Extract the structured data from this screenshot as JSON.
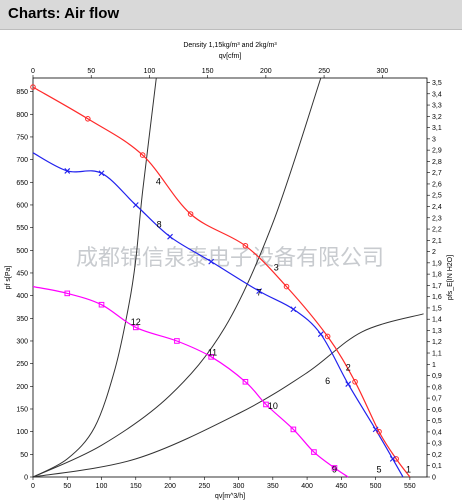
{
  "header": {
    "title": "Charts: Air flow"
  },
  "watermark": "成都锦信泉泰电子设备有限公司",
  "chart_data": {
    "type": "line",
    "title": "Density 1,15kg/m³ and 2kg/m³",
    "x_bottom": {
      "label": "qv[m^3/h]",
      "lim": [
        0,
        575
      ],
      "ticks": [
        0,
        50,
        100,
        150,
        200,
        250,
        300,
        350,
        400,
        450,
        500,
        550
      ]
    },
    "x_top": {
      "label": "qv[cfm]",
      "lim": [
        0,
        338.4
      ],
      "ticks": [
        0,
        50,
        100,
        150,
        200,
        250,
        300
      ]
    },
    "y_left": {
      "label": "pf s[Pa]",
      "lim": [
        0,
        880
      ],
      "ticks": [
        0,
        50,
        100,
        150,
        200,
        250,
        300,
        350,
        400,
        450,
        500,
        550,
        600,
        650,
        700,
        750,
        800,
        850
      ]
    },
    "y_right": {
      "label": "pfs_E[IN H2O]",
      "lim": [
        0,
        3.54
      ],
      "ticks": [
        "0",
        "0,1",
        "0,2",
        "0,3",
        "0,4",
        "0,5",
        "0,6",
        "0,7",
        "0,8",
        "0,9",
        "1",
        "1,1",
        "1,2",
        "1,3",
        "1,4",
        "1,5",
        "1,6",
        "1,7",
        "1,8",
        "1,9",
        "2",
        "2,1",
        "2,2",
        "2,3",
        "2,4",
        "2,5",
        "2,6",
        "2,7",
        "2,8",
        "2,9",
        "3",
        "3,1",
        "3,2",
        "3,3",
        "3,4",
        "3,5"
      ]
    },
    "grid": false,
    "series": [
      {
        "color": "#ff2a2a",
        "marker": "circle",
        "points": [
          [
            0,
            860
          ],
          [
            80,
            790
          ],
          [
            160,
            710
          ],
          [
            230,
            580
          ],
          [
            310,
            510
          ],
          [
            370,
            420
          ],
          [
            430,
            310
          ],
          [
            470,
            210
          ],
          [
            505,
            100
          ],
          [
            530,
            40
          ],
          [
            550,
            0
          ]
        ],
        "marker_points": [
          [
            0,
            860
          ],
          [
            80,
            790
          ],
          [
            160,
            710
          ],
          [
            230,
            580
          ],
          [
            310,
            510
          ],
          [
            370,
            420
          ],
          [
            430,
            310
          ],
          [
            470,
            210
          ],
          [
            505,
            100
          ],
          [
            530,
            40
          ]
        ]
      },
      {
        "color": "#2222ee",
        "marker": "cross",
        "points": [
          [
            0,
            715
          ],
          [
            50,
            675
          ],
          [
            100,
            670
          ],
          [
            150,
            600
          ],
          [
            200,
            530
          ],
          [
            260,
            475
          ],
          [
            330,
            410
          ],
          [
            380,
            370
          ],
          [
            420,
            315
          ],
          [
            460,
            205
          ],
          [
            500,
            105
          ],
          [
            525,
            40
          ],
          [
            540,
            0
          ]
        ],
        "marker_points": [
          [
            50,
            675
          ],
          [
            100,
            670
          ],
          [
            150,
            600
          ],
          [
            200,
            530
          ],
          [
            260,
            475
          ],
          [
            330,
            410
          ],
          [
            380,
            370
          ],
          [
            420,
            315
          ],
          [
            460,
            205
          ],
          [
            500,
            105
          ],
          [
            525,
            40
          ]
        ]
      },
      {
        "color": "#ff00ff",
        "marker": "square",
        "points": [
          [
            0,
            420
          ],
          [
            50,
            405
          ],
          [
            100,
            380
          ],
          [
            150,
            330
          ],
          [
            210,
            300
          ],
          [
            260,
            265
          ],
          [
            310,
            210
          ],
          [
            340,
            160
          ],
          [
            380,
            105
          ],
          [
            410,
            55
          ],
          [
            440,
            20
          ],
          [
            460,
            0
          ]
        ],
        "marker_points": [
          [
            50,
            405
          ],
          [
            100,
            380
          ],
          [
            150,
            330
          ],
          [
            210,
            300
          ],
          [
            260,
            265
          ],
          [
            310,
            210
          ],
          [
            340,
            160
          ],
          [
            380,
            105
          ],
          [
            410,
            55
          ],
          [
            440,
            20
          ]
        ]
      }
    ],
    "system_curves": [
      {
        "points": [
          [
            0,
            0
          ],
          [
            50,
            40
          ],
          [
            90,
            110
          ],
          [
            120,
            240
          ],
          [
            140,
            380
          ],
          [
            150,
            480
          ],
          [
            160,
            630
          ],
          [
            180,
            880
          ]
        ]
      },
      {
        "points": [
          [
            0,
            0
          ],
          [
            100,
            70
          ],
          [
            200,
            180
          ],
          [
            280,
            330
          ],
          [
            350,
            560
          ],
          [
            420,
            880
          ]
        ]
      },
      {
        "points": [
          [
            0,
            0
          ],
          [
            150,
            40
          ],
          [
            300,
            140
          ],
          [
            400,
            230
          ],
          [
            480,
            320
          ],
          [
            570,
            360
          ]
        ]
      }
    ],
    "point_labels": [
      {
        "text": "4",
        "x": 183,
        "y": 645
      },
      {
        "text": "8",
        "x": 184,
        "y": 550
      },
      {
        "text": "3",
        "x": 355,
        "y": 455
      },
      {
        "text": "7",
        "x": 330,
        "y": 400
      },
      {
        "text": "12",
        "x": 150,
        "y": 335
      },
      {
        "text": "11",
        "x": 262,
        "y": 268
      },
      {
        "text": "2",
        "x": 460,
        "y": 235
      },
      {
        "text": "6",
        "x": 430,
        "y": 205
      },
      {
        "text": "10",
        "x": 350,
        "y": 150
      },
      {
        "text": "1",
        "x": 548,
        "y": 10
      },
      {
        "text": "5",
        "x": 505,
        "y": 10
      },
      {
        "text": "9",
        "x": 440,
        "y": 10
      }
    ]
  }
}
